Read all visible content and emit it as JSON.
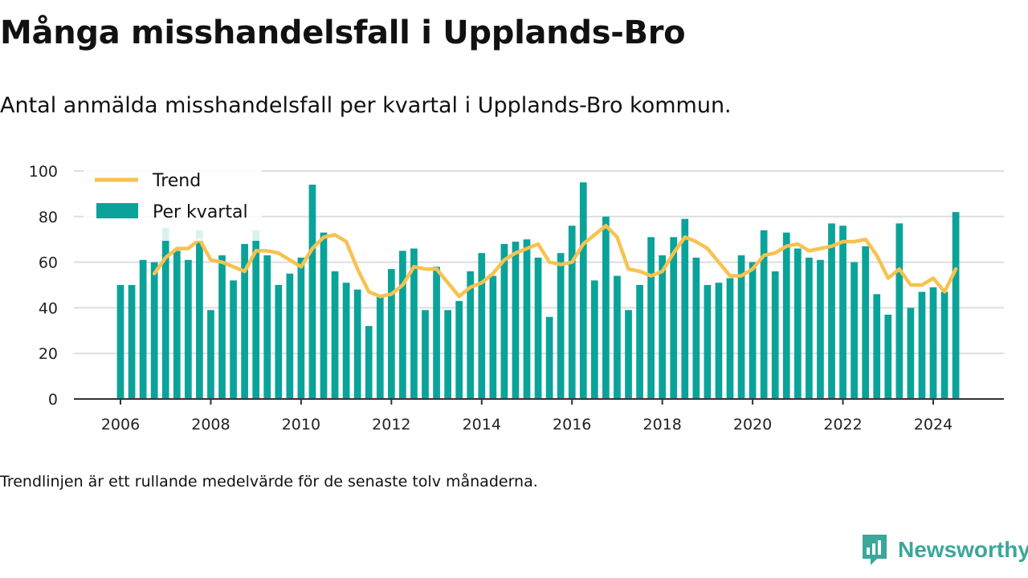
{
  "title": "Många misshandelsfall i Upplands-Bro",
  "subtitle": "Antal anmälda misshandelsfall per kvartal i Upplands-Bro kommun.",
  "footnote": "Trendlinjen är ett rullande medelvärde för de senaste tolv månaderna.",
  "brand": {
    "name": "Newsworthy",
    "icon": "newsworthy-logo-icon"
  },
  "colors": {
    "bars": "#0aa39a",
    "trend": "#f7c24f",
    "grid": "#dddddd",
    "axis": "#333333"
  },
  "chart_data": {
    "type": "bar",
    "legend_position": "top-left",
    "grid": true,
    "ylim": [
      0,
      100
    ],
    "yticks": [
      0,
      20,
      40,
      60,
      80,
      100
    ],
    "xticks": [
      2006,
      2008,
      2010,
      2012,
      2014,
      2016,
      2018,
      2020,
      2022,
      2024
    ],
    "xlim": [
      2005,
      2025
    ],
    "x": [
      2006.0,
      2006.25,
      2006.5,
      2006.75,
      2007.0,
      2007.25,
      2007.5,
      2007.75,
      2008.0,
      2008.25,
      2008.5,
      2008.75,
      2009.0,
      2009.25,
      2009.5,
      2009.75,
      2010.0,
      2010.25,
      2010.5,
      2010.75,
      2011.0,
      2011.25,
      2011.5,
      2011.75,
      2012.0,
      2012.25,
      2012.5,
      2012.75,
      2013.0,
      2013.25,
      2013.5,
      2013.75,
      2014.0,
      2014.25,
      2014.5,
      2014.75,
      2015.0,
      2015.25,
      2015.5,
      2015.75,
      2016.0,
      2016.25,
      2016.5,
      2016.75,
      2017.0,
      2017.25,
      2017.5,
      2017.75,
      2018.0,
      2018.25,
      2018.5,
      2018.75,
      2019.0,
      2019.25,
      2019.5,
      2019.75,
      2020.0,
      2020.25,
      2020.5,
      2020.75,
      2021.0,
      2021.25,
      2021.5,
      2021.75,
      2022.0,
      2022.25,
      2022.5,
      2022.75,
      2023.0,
      2023.25,
      2023.5,
      2023.75,
      2024.0,
      2024.25,
      2024.5
    ],
    "series": [
      {
        "name": "Per kvartal",
        "type": "bar",
        "values": [
          50,
          50,
          61,
          60,
          75,
          65,
          61,
          74,
          39,
          63,
          52,
          68,
          74,
          63,
          50,
          55,
          62,
          94,
          73,
          56,
          51,
          48,
          32,
          45,
          57,
          65,
          66,
          39,
          58,
          39,
          43,
          56,
          64,
          54,
          68,
          69,
          70,
          62,
          36,
          64,
          76,
          95,
          52,
          80,
          54,
          39,
          50,
          71,
          63,
          71,
          79,
          62,
          50,
          51,
          53,
          63,
          60,
          74,
          56,
          73,
          66,
          62,
          61,
          77,
          76,
          60,
          67,
          46,
          37,
          77,
          40,
          47,
          49,
          47,
          82
        ]
      },
      {
        "name": "Trend",
        "type": "line",
        "values": [
          null,
          null,
          null,
          55,
          62,
          66,
          66,
          70,
          61,
          60,
          58,
          56,
          65,
          65,
          64,
          61,
          58,
          66,
          71,
          72,
          69,
          57,
          47,
          45,
          46,
          50,
          58,
          57,
          57,
          51,
          45,
          49,
          51,
          55,
          61,
          64,
          66,
          68,
          60,
          59,
          60,
          68,
          72,
          76,
          71,
          57,
          56,
          54,
          56,
          64,
          71,
          69,
          66,
          60,
          54,
          54,
          57,
          63,
          64,
          67,
          68,
          65,
          66,
          67,
          69,
          69,
          70,
          63,
          53,
          57,
          50,
          50,
          53,
          47,
          57
        ]
      }
    ]
  }
}
